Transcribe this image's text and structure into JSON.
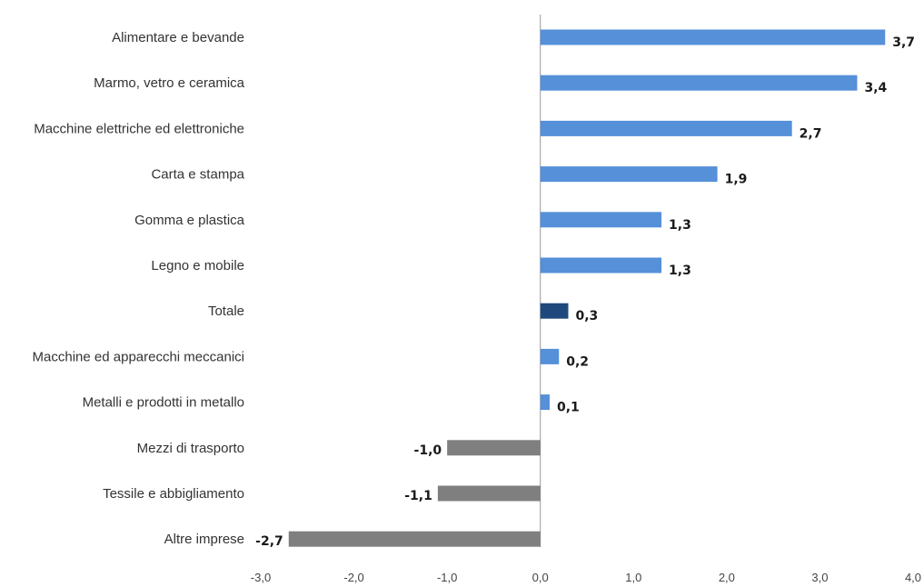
{
  "colors": {
    "positive": "#5590d9",
    "total": "#1f497d",
    "negative": "#7f7f7f",
    "axis": "#999999"
  },
  "chart_data": {
    "type": "bar",
    "orientation": "horizontal",
    "categories": [
      "Alimentare e bevande",
      "Marmo, vetro e ceramica",
      "Macchine elettriche ed elettroniche",
      "Carta e stampa",
      "Gomma e plastica",
      "Legno e mobile",
      "Totale",
      "Macchine ed apparecchi meccanici",
      "Metalli e prodotti in metallo",
      "Mezzi di trasporto",
      "Tessile e abbigliamento",
      "Altre imprese"
    ],
    "values": [
      3.7,
      3.4,
      2.7,
      1.9,
      1.3,
      1.3,
      0.3,
      0.2,
      0.1,
      -1.0,
      -1.1,
      -2.7
    ],
    "value_labels": [
      "3,7",
      "3,4",
      "2,7",
      "1,9",
      "1,3",
      "1,3",
      "0,3",
      "0,2",
      "0,1",
      "-1,0",
      "-1,1",
      "-2,7"
    ],
    "xlim": [
      -3.0,
      4.0
    ],
    "x_ticks": [
      -3.0,
      -2.0,
      -1.0,
      0.0,
      1.0,
      2.0,
      3.0,
      4.0
    ],
    "x_tick_labels": [
      "-3,0",
      "-2,0",
      "-1,0",
      "0,0",
      "1,0",
      "2,0",
      "3,0",
      "4,0"
    ],
    "highlight_category": "Totale",
    "grid": false,
    "legend": "none"
  }
}
